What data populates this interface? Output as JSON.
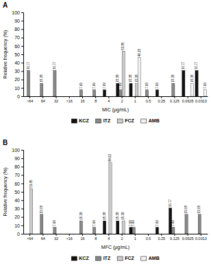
{
  "chart_data": [
    {
      "type": "bar",
      "title": "A",
      "xlabel": "MIC (μg/mL)",
      "ylabel": "Relative frequency (%)",
      "categories": [
        ">64",
        "64",
        "32",
        ">16",
        "16",
        "8",
        "4",
        "2",
        "1",
        "0.5",
        "0.25",
        "0.125",
        "0.0625",
        "0.0313"
      ],
      "series": [
        {
          "name": "KCZ",
          "color": "#111111",
          "values": [
            0,
            0,
            0,
            0,
            0,
            0,
            7.69,
            15.38,
            15.38,
            0,
            7.69,
            0,
            30.77,
            30.77
          ]
        },
        {
          "name": "ITZ",
          "color": "#888888",
          "values": [
            30.77,
            15.38,
            30.77,
            0,
            7.69,
            7.69,
            0,
            7.69,
            0,
            7.69,
            0,
            15.38,
            0,
            0
          ]
        },
        {
          "name": "FCZ",
          "color": "#cccccc",
          "values": [
            0,
            0,
            0,
            0,
            0,
            0,
            0,
            53.85,
            15.38,
            0,
            0,
            0,
            0,
            0
          ]
        },
        {
          "name": "AMB",
          "color": "#f2f2f2",
          "values": [
            0,
            0,
            0,
            0,
            0,
            0,
            0,
            0,
            46.15,
            0,
            0,
            0,
            15.38,
            7.69
          ]
        }
      ],
      "ylim": [
        0,
        100
      ],
      "yticks": [
        0,
        10,
        20,
        30,
        40,
        50,
        60,
        70,
        80,
        90,
        100
      ],
      "data_labels": true,
      "grid": false,
      "legend": "bottom"
    },
    {
      "type": "bar",
      "title": "B",
      "xlabel": "MFC (μg/mL)",
      "ylabel": "Relative frequency (%)",
      "categories": [
        ">64",
        "64",
        "32",
        ">16",
        "16",
        "8",
        "4",
        "2",
        "1",
        "0.5",
        "0.25",
        "0.125",
        "0.0625",
        "0.0313"
      ],
      "series": [
        {
          "name": "KCZ",
          "color": "#111111",
          "values": [
            0,
            0,
            0,
            0,
            0,
            0,
            15.38,
            15.38,
            7.69,
            0,
            7.69,
            30.77,
            0,
            0
          ]
        },
        {
          "name": "ITZ",
          "color": "#888888",
          "values": [
            0,
            23.08,
            7.69,
            0,
            15.38,
            7.69,
            0,
            0,
            7.69,
            0,
            0,
            7.69,
            23.08,
            23.08
          ]
        },
        {
          "name": "FCZ",
          "color": "#cccccc",
          "values": [
            53.85,
            0,
            0,
            0,
            0,
            0,
            84.62,
            15.38,
            0,
            0,
            0,
            0,
            0,
            0
          ]
        },
        {
          "name": "AMB",
          "color": "#f2f2f2",
          "values": [
            0,
            0,
            0,
            0,
            0,
            0,
            0,
            0,
            0,
            0,
            0,
            0,
            0,
            0
          ]
        }
      ],
      "ylim": [
        0,
        100
      ],
      "yticks": [
        0,
        10,
        20,
        30,
        40,
        50,
        60,
        70,
        80,
        90,
        100
      ],
      "data_labels": true,
      "grid": false,
      "legend": "bottom"
    }
  ]
}
